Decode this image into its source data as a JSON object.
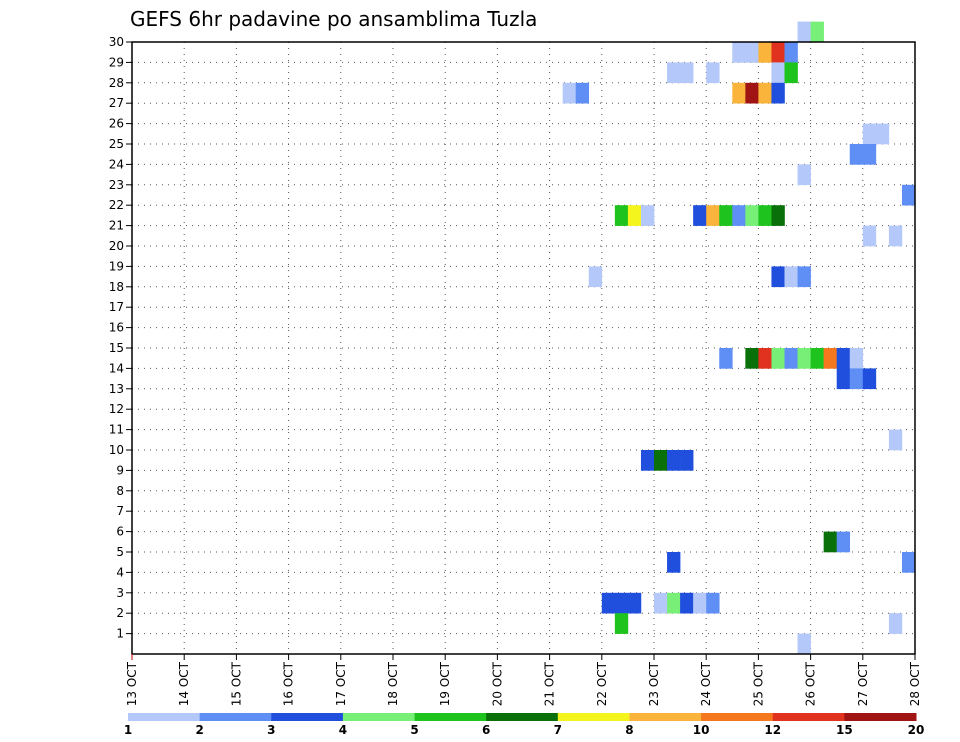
{
  "chart_data": {
    "type": "heatmap",
    "title": "GEFS 6hr padavine po ansamblima Tuzla",
    "xlabel": "",
    "ylabel": "",
    "x_tick_labels": [
      "13 OCT",
      "14 OCT",
      "15 OCT",
      "16 OCT",
      "17 OCT",
      "18 OCT",
      "19 OCT",
      "20 OCT",
      "21 OCT",
      "22 OCT",
      "23 OCT",
      "24 OCT",
      "25 OCT",
      "26 OCT",
      "27 OCT",
      "28 OCT"
    ],
    "x_range_days": [
      0,
      15
    ],
    "y_tick_labels": [
      "1",
      "2",
      "3",
      "4",
      "5",
      "6",
      "7",
      "8",
      "9",
      "10",
      "11",
      "12",
      "13",
      "14",
      "15",
      "16",
      "17",
      "18",
      "19",
      "20",
      "21",
      "22",
      "23",
      "24",
      "25",
      "26",
      "27",
      "28",
      "29",
      "30"
    ],
    "y_range": [
      0,
      30
    ],
    "grid": true,
    "legend_placement": "bottom",
    "legend_labels": [
      "1",
      "2",
      "3",
      "4",
      "5",
      "6",
      "7",
      "8",
      "10",
      "12",
      "15",
      "20"
    ],
    "legend_colors": [
      "#b4c8fa",
      "#5f8ff5",
      "#1f4fdc",
      "#78f078",
      "#1ec31e",
      "#0a700a",
      "#f5f51e",
      "#fab43c",
      "#f5781e",
      "#e0321e",
      "#a01414"
    ],
    "cells": [
      {
        "member": 30,
        "day": 12.75,
        "level": 1
      },
      {
        "member": 30,
        "day": 13.0,
        "level": 4
      },
      {
        "member": 29,
        "day": 11.5,
        "level": 1
      },
      {
        "member": 29,
        "day": 11.75,
        "level": 1
      },
      {
        "member": 29,
        "day": 12.0,
        "level": 8
      },
      {
        "member": 29,
        "day": 12.25,
        "level": 10
      },
      {
        "member": 29,
        "day": 12.5,
        "level": 2
      },
      {
        "member": 28,
        "day": 10.25,
        "level": 1
      },
      {
        "member": 28,
        "day": 10.5,
        "level": 1
      },
      {
        "member": 28,
        "day": 11.0,
        "level": 1
      },
      {
        "member": 28,
        "day": 12.25,
        "level": 1
      },
      {
        "member": 28,
        "day": 12.5,
        "level": 5
      },
      {
        "member": 27,
        "day": 8.25,
        "level": 1
      },
      {
        "member": 27,
        "day": 8.5,
        "level": 2
      },
      {
        "member": 27,
        "day": 11.5,
        "level": 8
      },
      {
        "member": 27,
        "day": 11.75,
        "level": 11
      },
      {
        "member": 27,
        "day": 12.0,
        "level": 8
      },
      {
        "member": 27,
        "day": 12.25,
        "level": 3
      },
      {
        "member": 25,
        "day": 14.0,
        "level": 1
      },
      {
        "member": 25,
        "day": 14.25,
        "level": 1
      },
      {
        "member": 24,
        "day": 13.75,
        "level": 2
      },
      {
        "member": 24,
        "day": 14.0,
        "level": 2
      },
      {
        "member": 23,
        "day": 12.75,
        "level": 1
      },
      {
        "member": 22,
        "day": 14.75,
        "level": 2
      },
      {
        "member": 21,
        "day": 9.25,
        "level": 5
      },
      {
        "member": 21,
        "day": 9.5,
        "level": 7
      },
      {
        "member": 21,
        "day": 9.75,
        "level": 1
      },
      {
        "member": 21,
        "day": 10.75,
        "level": 3
      },
      {
        "member": 21,
        "day": 11.0,
        "level": 8
      },
      {
        "member": 21,
        "day": 11.25,
        "level": 5
      },
      {
        "member": 21,
        "day": 11.5,
        "level": 2
      },
      {
        "member": 21,
        "day": 11.75,
        "level": 4
      },
      {
        "member": 21,
        "day": 12.0,
        "level": 5
      },
      {
        "member": 21,
        "day": 12.25,
        "level": 6
      },
      {
        "member": 20,
        "day": 14.0,
        "level": 1
      },
      {
        "member": 20,
        "day": 14.5,
        "level": 1
      },
      {
        "member": 18,
        "day": 8.75,
        "level": 1
      },
      {
        "member": 18,
        "day": 12.25,
        "level": 3
      },
      {
        "member": 18,
        "day": 12.5,
        "level": 1
      },
      {
        "member": 18,
        "day": 12.75,
        "level": 2
      },
      {
        "member": 14,
        "day": 11.25,
        "level": 2
      },
      {
        "member": 14,
        "day": 11.75,
        "level": 6
      },
      {
        "member": 14,
        "day": 12.0,
        "level": 10
      },
      {
        "member": 14,
        "day": 12.25,
        "level": 4
      },
      {
        "member": 14,
        "day": 12.5,
        "level": 2
      },
      {
        "member": 14,
        "day": 12.75,
        "level": 4
      },
      {
        "member": 14,
        "day": 13.0,
        "level": 5
      },
      {
        "member": 14,
        "day": 13.25,
        "level": 9
      },
      {
        "member": 14,
        "day": 13.5,
        "level": 3
      },
      {
        "member": 14,
        "day": 13.75,
        "level": 1
      },
      {
        "member": 13,
        "day": 13.5,
        "level": 3
      },
      {
        "member": 13,
        "day": 13.75,
        "level": 2
      },
      {
        "member": 13,
        "day": 14.0,
        "level": 3
      },
      {
        "member": 10,
        "day": 14.5,
        "level": 1
      },
      {
        "member": 9,
        "day": 9.75,
        "level": 3
      },
      {
        "member": 9,
        "day": 10.0,
        "level": 6
      },
      {
        "member": 9,
        "day": 10.25,
        "level": 3
      },
      {
        "member": 9,
        "day": 10.5,
        "level": 3
      },
      {
        "member": 5,
        "day": 13.25,
        "level": 6
      },
      {
        "member": 5,
        "day": 13.5,
        "level": 2
      },
      {
        "member": 4,
        "day": 10.25,
        "level": 3
      },
      {
        "member": 4,
        "day": 14.75,
        "level": 2
      },
      {
        "member": 2,
        "day": 9.0,
        "level": 3
      },
      {
        "member": 2,
        "day": 9.25,
        "level": 3
      },
      {
        "member": 2,
        "day": 9.5,
        "level": 3
      },
      {
        "member": 2,
        "day": 10.0,
        "level": 1
      },
      {
        "member": 2,
        "day": 10.25,
        "level": 4
      },
      {
        "member": 2,
        "day": 10.5,
        "level": 3
      },
      {
        "member": 2,
        "day": 10.75,
        "level": 1
      },
      {
        "member": 2,
        "day": 11.0,
        "level": 2
      },
      {
        "member": 1,
        "day": 9.25,
        "level": 5
      },
      {
        "member": 1,
        "day": 14.5,
        "level": 1
      },
      {
        "member": 0,
        "day": 12.75,
        "level": 1
      }
    ]
  }
}
